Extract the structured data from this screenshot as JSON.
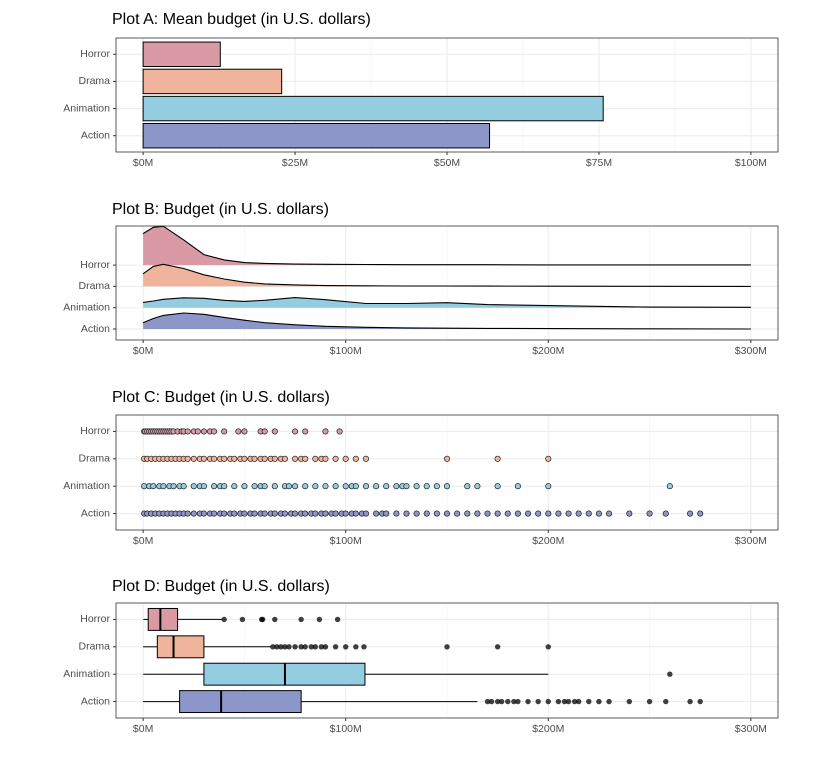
{
  "chart_data": [
    {
      "type": "bar",
      "title": "Plot A: Mean budget (in U.S. dollars)",
      "categories": [
        "Action",
        "Animation",
        "Drama",
        "Horror"
      ],
      "colors": [
        "#8d96c8",
        "#94cde0",
        "#f0b39b",
        "#da9aa5"
      ],
      "values": [
        57,
        75.7,
        22.8,
        12.7
      ],
      "xlim": [
        -4.46,
        104.46
      ],
      "xticks": [
        {
          "value": 0,
          "label": "$0M"
        },
        {
          "value": 25,
          "label": "$25M"
        },
        {
          "value": 50,
          "label": "$50M"
        },
        {
          "value": 75,
          "label": "$75M"
        },
        {
          "value": 100,
          "label": "$100M"
        }
      ],
      "grid": true
    },
    {
      "type": "ridgeline",
      "title": "Plot B: Budget (in U.S. dollars)",
      "categories": [
        "Action",
        "Animation",
        "Drama",
        "Horror"
      ],
      "colors": [
        "#8d96c8",
        "#94cde0",
        "#f0b39b",
        "#da9aa5"
      ],
      "x": [
        0,
        5,
        10,
        20,
        30,
        40,
        50,
        60,
        75,
        90,
        110,
        130,
        150,
        170,
        200,
        250,
        300
      ],
      "densities": [
        [
          0.3,
          0.5,
          0.65,
          0.76,
          0.7,
          0.55,
          0.42,
          0.3,
          0.2,
          0.13,
          0.08,
          0.05,
          0.04,
          0.03,
          0.02,
          0.01,
          0
        ],
        [
          0.25,
          0.32,
          0.4,
          0.47,
          0.45,
          0.35,
          0.3,
          0.35,
          0.48,
          0.38,
          0.2,
          0.2,
          0.24,
          0.15,
          0.1,
          0.03,
          0.02
        ],
        [
          0.6,
          0.95,
          1.05,
          0.85,
          0.55,
          0.35,
          0.2,
          0.12,
          0.07,
          0.04,
          0.03,
          0.02,
          0.02,
          0.015,
          0.01,
          0.005,
          0
        ],
        [
          1.5,
          1.8,
          1.85,
          1.2,
          0.5,
          0.25,
          0.12,
          0.08,
          0.05,
          0.04,
          0.03,
          0.02,
          0.02,
          0.02,
          0.01,
          0.01,
          0.01
        ]
      ],
      "xlim": [
        -13.4,
        313.4
      ],
      "xticks": [
        {
          "value": 0,
          "label": "$0M"
        },
        {
          "value": 100,
          "label": "$100M"
        },
        {
          "value": 200,
          "label": "$200M"
        },
        {
          "value": 300,
          "label": "$300M"
        }
      ],
      "grid": true
    },
    {
      "type": "strip",
      "title": "Plot C: Budget (in U.S. dollars)",
      "categories": [
        "Action",
        "Animation",
        "Drama",
        "Horror"
      ],
      "colors": [
        "#8d96c8",
        "#94cde0",
        "#f0b39b",
        "#da9aa5"
      ],
      "points": [
        [
          0.5,
          2,
          4,
          6,
          8,
          10,
          12,
          14,
          16,
          18,
          20,
          22,
          25,
          28,
          30,
          33,
          35,
          38,
          40,
          43,
          45,
          48,
          50,
          53,
          55,
          58,
          60,
          63,
          65,
          68,
          70,
          73,
          75,
          78,
          80,
          83,
          85,
          88,
          90,
          93,
          95,
          98,
          100,
          103,
          105,
          108,
          110,
          115,
          118,
          120,
          125,
          130,
          135,
          140,
          145,
          150,
          155,
          160,
          165,
          170,
          175,
          180,
          185,
          190,
          195,
          200,
          205,
          210,
          215,
          220,
          225,
          230,
          240,
          250,
          258,
          270,
          275
        ],
        [
          0.5,
          3,
          5,
          8,
          10,
          13,
          15,
          18,
          20,
          25,
          28,
          30,
          35,
          38,
          40,
          45,
          50,
          55,
          58,
          60,
          65,
          70,
          72,
          75,
          80,
          85,
          90,
          95,
          100,
          103,
          105,
          110,
          115,
          120,
          125,
          128,
          130,
          135,
          140,
          145,
          150,
          160,
          165,
          175,
          185,
          200,
          260
        ],
        [
          0.5,
          2,
          4,
          6,
          8,
          10,
          12,
          14,
          16,
          18,
          20,
          22,
          25,
          28,
          30,
          33,
          35,
          38,
          40,
          43,
          45,
          48,
          50,
          53,
          55,
          58,
          60,
          63,
          65,
          68,
          70,
          75,
          78,
          80,
          85,
          88,
          90,
          95,
          100,
          105,
          110,
          150,
          175,
          200
        ],
        [
          0.5,
          1,
          2,
          3,
          4,
          5,
          6,
          7,
          8,
          9,
          10,
          11,
          12,
          13,
          14,
          15,
          17,
          19,
          20,
          22,
          25,
          27,
          30,
          33,
          35,
          40,
          47,
          50,
          58,
          60,
          65,
          75,
          80,
          90,
          97
        ]
      ],
      "xlim": [
        -13.4,
        313.4
      ],
      "xticks": [
        {
          "value": 0,
          "label": "$0M"
        },
        {
          "value": 100,
          "label": "$100M"
        },
        {
          "value": 200,
          "label": "$200M"
        },
        {
          "value": 300,
          "label": "$300M"
        }
      ],
      "grid": true
    },
    {
      "type": "box",
      "title": "Plot D: Budget (in U.S. dollars)",
      "categories": [
        "Action",
        "Animation",
        "Drama",
        "Horror"
      ],
      "colors": [
        "#8d96c8",
        "#94cde0",
        "#f0b39b",
        "#da9aa5"
      ],
      "boxes": [
        {
          "min": 0,
          "q1": 18,
          "median": 38.5,
          "q3": 78,
          "max": 165,
          "outliers": [
            170,
            172,
            175,
            177,
            180,
            183,
            185,
            190,
            195,
            200,
            205,
            208,
            210,
            213,
            215,
            220,
            225,
            230,
            240,
            250,
            258,
            270,
            275
          ]
        },
        {
          "min": 0,
          "q1": 30,
          "median": 70,
          "q3": 109.5,
          "max": 200,
          "outliers": [
            260
          ]
        },
        {
          "min": 0,
          "q1": 7,
          "median": 15,
          "q3": 30,
          "max": 63,
          "outliers": [
            64,
            66,
            68,
            70,
            72,
            75,
            78,
            80,
            83,
            85,
            88,
            90,
            95,
            100,
            105,
            109,
            150,
            175,
            200
          ]
        },
        {
          "min": 0.1,
          "q1": 2.5,
          "median": 8.5,
          "q3": 17,
          "max": 39,
          "outliers": [
            40,
            49,
            58.5,
            59,
            65,
            78,
            87,
            96
          ]
        }
      ],
      "xlim": [
        -13.4,
        313.4
      ],
      "xticks": [
        {
          "value": 0,
          "label": "$0M"
        },
        {
          "value": 100,
          "label": "$100M"
        },
        {
          "value": 200,
          "label": "$200M"
        },
        {
          "value": 300,
          "label": "$300M"
        }
      ],
      "grid": true
    }
  ]
}
